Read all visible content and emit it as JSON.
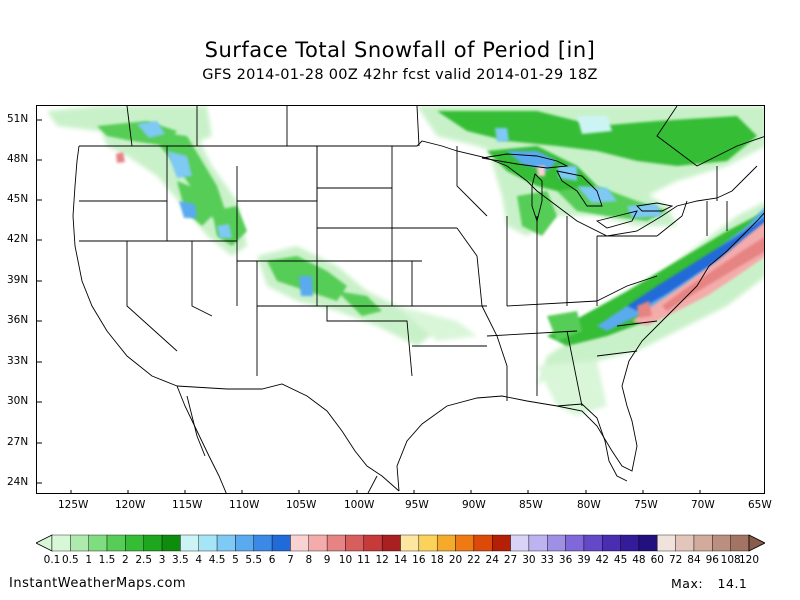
{
  "title": "Surface Total Snowfall of Period [in]",
  "subtitle": "GFS 2014-01-28 00Z 42hr fcst valid 2014-01-29 18Z",
  "lat_labels": [
    "51N",
    "48N",
    "45N",
    "42N",
    "39N",
    "36N",
    "33N",
    "30N",
    "27N",
    "24N"
  ],
  "lon_labels": [
    "125W",
    "120W",
    "115W",
    "110W",
    "105W",
    "100W",
    "95W",
    "90W",
    "85W",
    "80W",
    "75W",
    "70W",
    "65W"
  ],
  "colorbar": {
    "labels": [
      "0.1",
      "0.5",
      "1",
      "1.5",
      "2",
      "2.5",
      "3",
      "3.5",
      "4",
      "4.5",
      "5",
      "5.5",
      "6",
      "7",
      "8",
      "9",
      "10",
      "11",
      "12",
      "14",
      "16",
      "18",
      "20",
      "22",
      "24",
      "27",
      "30",
      "33",
      "36",
      "39",
      "42",
      "45",
      "48",
      "60",
      "72",
      "84",
      "96",
      "108",
      "120"
    ],
    "colors": [
      "#d7f7d7",
      "#aeeaae",
      "#7fdc7f",
      "#57cd57",
      "#36bd36",
      "#1fa61f",
      "#0e8c0e",
      "#cdf4f4",
      "#a6e4f7",
      "#7fc9f5",
      "#5aaaf0",
      "#3a89e6",
      "#216bd8",
      "#fbd2d2",
      "#f4abab",
      "#e68383",
      "#d85e5e",
      "#c63a3a",
      "#a82020",
      "#fde7a0",
      "#fbd35a",
      "#f6aa2a",
      "#ef7a13",
      "#dc4a0a",
      "#b51f05",
      "#d9d4f7",
      "#bdb3f0",
      "#9f90e6",
      "#8068da",
      "#6348c8",
      "#4a2eb2",
      "#341b9a",
      "#22107e",
      "#f2e2dc",
      "#e3c6bb",
      "#d2ab9c",
      "#bb8f80",
      "#a37363",
      "#8a5a4a"
    ]
  },
  "footer": {
    "source": "InstantWeatherMaps.com",
    "max_label": "Max:",
    "max_value": "14.1"
  }
}
